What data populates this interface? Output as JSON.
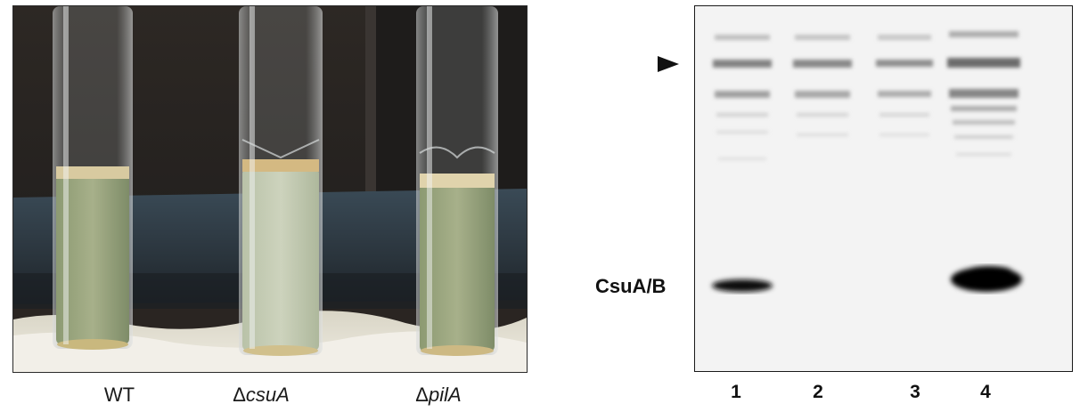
{
  "tube_labels": [
    {
      "prefix": "WT",
      "italic": ""
    },
    {
      "prefix": "Δ",
      "italic": "csuA"
    },
    {
      "prefix": "Δ",
      "italic": "pilA"
    }
  ],
  "blot": {
    "band_label": "CsuA/B",
    "lanes": [
      "1",
      "2",
      "3",
      "4"
    ],
    "marker_icon": "arrowhead-marker"
  }
}
